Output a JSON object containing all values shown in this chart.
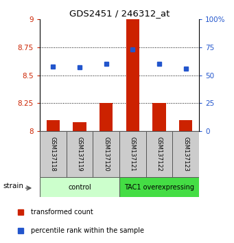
{
  "title": "GDS2451 / 246312_at",
  "samples": [
    "GSM137118",
    "GSM137119",
    "GSM137120",
    "GSM137121",
    "GSM137122",
    "GSM137123"
  ],
  "transformed_counts": [
    8.1,
    8.08,
    8.25,
    9.0,
    8.25,
    8.1
  ],
  "percentile_ranks": [
    58,
    57,
    60,
    73,
    60,
    56
  ],
  "bar_color": "#cc2200",
  "dot_color": "#2255cc",
  "ylim_left": [
    8.0,
    9.0
  ],
  "ylim_right": [
    0,
    100
  ],
  "yticks_left": [
    8.0,
    8.25,
    8.5,
    8.75,
    9.0
  ],
  "ytick_labels_left": [
    "8",
    "8.25",
    "8.5",
    "8.75",
    "9"
  ],
  "yticks_right": [
    0,
    25,
    50,
    75,
    100
  ],
  "ytick_labels_right": [
    "0",
    "25",
    "50",
    "75",
    "100%"
  ],
  "grid_yticks": [
    8.25,
    8.5,
    8.75
  ],
  "left_tick_color": "#cc2200",
  "right_tick_color": "#2255cc",
  "control_color": "#ccffcc",
  "tac1_color": "#44dd44",
  "sample_box_color": "#cccccc",
  "strain_label": "strain",
  "legend_red": "transformed count",
  "legend_blue": "percentile rank within the sample",
  "groups_info": [
    {
      "start": 0,
      "end": 2,
      "label": "control",
      "color": "#ccffcc"
    },
    {
      "start": 3,
      "end": 5,
      "label": "TAC1 overexpressing",
      "color": "#44dd44"
    }
  ]
}
